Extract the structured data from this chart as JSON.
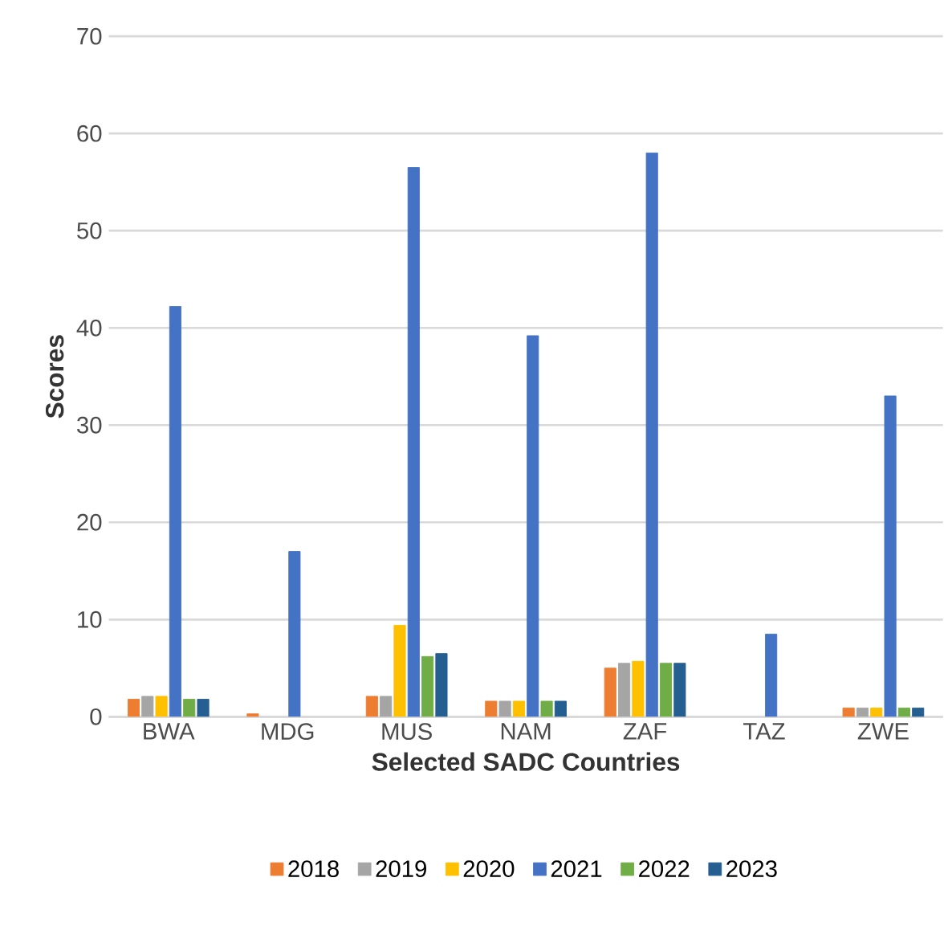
{
  "chart_data": {
    "type": "bar",
    "xlabel": "Selected SADC Countries",
    "ylabel": "Scores",
    "categories": [
      "BWA",
      "MDG",
      "MUS",
      "NAM",
      "ZAF",
      "TAZ",
      "ZWE"
    ],
    "series": [
      {
        "name": "2018",
        "color": "#ed7d31",
        "values": [
          1.8,
          0.3,
          2.1,
          1.6,
          5.0,
          null,
          0.9
        ]
      },
      {
        "name": "2019",
        "color": "#a5a5a5",
        "values": [
          2.1,
          null,
          2.1,
          1.6,
          5.5,
          null,
          0.9
        ]
      },
      {
        "name": "2020",
        "color": "#ffc000",
        "values": [
          2.1,
          null,
          9.4,
          1.6,
          5.7,
          null,
          0.9
        ]
      },
      {
        "name": "2021",
        "color": "#4472c4",
        "values": [
          42.2,
          17,
          56.5,
          39.2,
          58,
          8.5,
          33
        ]
      },
      {
        "name": "2022",
        "color": "#70ad47",
        "values": [
          1.8,
          null,
          6.2,
          1.6,
          5.5,
          null,
          0.9
        ]
      },
      {
        "name": "2023",
        "color": "#255e91",
        "values": [
          1.8,
          null,
          6.5,
          1.6,
          5.5,
          null,
          0.9
        ]
      }
    ],
    "ylim": [
      0,
      70
    ],
    "yticks": [
      0,
      10,
      20,
      30,
      40,
      50,
      60,
      70
    ],
    "grid": "y",
    "legend": "bottom"
  }
}
